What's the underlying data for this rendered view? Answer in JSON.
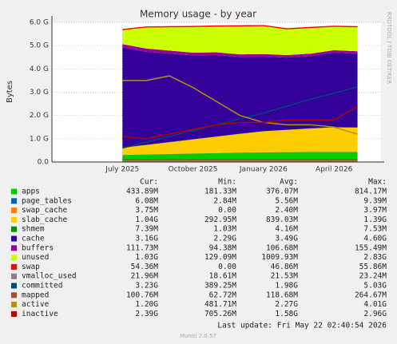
{
  "chart_data": {
    "type": "area",
    "title": "Memory usage - by year",
    "ylabel": "Bytes",
    "side_text": "RRDTOOL / TOBI OETIKER",
    "x": [
      "2025-07",
      "2025-08",
      "2025-09",
      "2025-10",
      "2025-11",
      "2025-12",
      "2026-01",
      "2026-02",
      "2026-03",
      "2026-04",
      "2026-05"
    ],
    "xlim": [
      "2025-04",
      "2026-06"
    ],
    "xticks": [
      {
        "value": "2025-07",
        "label": "July 2025"
      },
      {
        "value": "2025-10",
        "label": "October 2025"
      },
      {
        "value": "2026-01",
        "label": "January 2026"
      },
      {
        "value": "2026-04",
        "label": "April 2026"
      }
    ],
    "ylim": [
      0,
      6
    ],
    "yticks": [
      {
        "value": 0,
        "label": "0.0"
      },
      {
        "value": 1,
        "label": "1.0 G"
      },
      {
        "value": 2,
        "label": "2.0 G"
      },
      {
        "value": 3,
        "label": "3.0 G"
      },
      {
        "value": 4,
        "label": "4.0 G"
      },
      {
        "value": 5,
        "label": "5.0 G"
      },
      {
        "value": 6,
        "label": "6.0 G"
      }
    ],
    "grid": true,
    "stat_headers": [
      "Cur:",
      "Min:",
      "Avg:",
      "Max:"
    ],
    "series": [
      {
        "name": "apps",
        "color": "#00cc00",
        "stack": true,
        "values": [
          0.3,
          0.32,
          0.34,
          0.36,
          0.38,
          0.4,
          0.41,
          0.42,
          0.43,
          0.43,
          0.43
        ],
        "stats": [
          "433.89M",
          "181.33M",
          "376.07M",
          "814.17M"
        ]
      },
      {
        "name": "page_tables",
        "color": "#0066b3",
        "stack": true,
        "values": [
          0.006,
          0.006,
          0.006,
          0.006,
          0.006,
          0.006,
          0.006,
          0.006,
          0.006,
          0.006,
          0.006
        ],
        "stats": [
          "6.08M",
          "2.84M",
          "5.56M",
          "9.39M"
        ]
      },
      {
        "name": "swap_cache",
        "color": "#ff8000",
        "stack": true,
        "values": [
          0.003,
          0.003,
          0.003,
          0.003,
          0.003,
          0.003,
          0.003,
          0.003,
          0.003,
          0.003,
          0.003
        ],
        "stats": [
          "3.75M",
          "0.00",
          "2.40M",
          "3.97M"
        ]
      },
      {
        "name": "slab_cache",
        "color": "#ffcc00",
        "stack": true,
        "values": [
          0.3,
          0.4,
          0.5,
          0.6,
          0.7,
          0.8,
          0.9,
          0.95,
          1.0,
          1.05,
          1.04
        ],
        "stats": [
          "1.04G",
          "292.95M",
          "839.03M",
          "1.39G"
        ]
      },
      {
        "name": "shmem",
        "color": "#008f00",
        "stack": true,
        "values": [
          0.007,
          0.007,
          0.007,
          0.007,
          0.007,
          0.007,
          0.007,
          0.007,
          0.007,
          0.007,
          0.007
        ],
        "stats": [
          "7.39M",
          "1.03M",
          "4.16M",
          "7.53M"
        ]
      },
      {
        "name": "cache",
        "color": "#330099",
        "stack": true,
        "values": [
          4.3,
          4.0,
          3.8,
          3.6,
          3.5,
          3.3,
          3.2,
          3.1,
          3.1,
          3.2,
          3.16
        ],
        "stats": [
          "3.16G",
          "2.29G",
          "3.49G",
          "4.60G"
        ]
      },
      {
        "name": "buffers",
        "color": "#990099",
        "stack": true,
        "values": [
          0.15,
          0.14,
          0.13,
          0.12,
          0.12,
          0.11,
          0.11,
          0.11,
          0.11,
          0.11,
          0.11
        ],
        "stats": [
          "111.73M",
          "94.38M",
          "106.68M",
          "155.49M"
        ]
      },
      {
        "name": "unused",
        "color": "#ccff00",
        "stack": true,
        "values": [
          0.6,
          0.9,
          1.0,
          1.1,
          1.1,
          1.2,
          1.2,
          1.1,
          1.1,
          1.0,
          1.03
        ],
        "stats": [
          "1.03G",
          "129.09M",
          "1009.93M",
          "2.83G"
        ]
      },
      {
        "name": "swap",
        "color": "#ff0000",
        "stack": true,
        "values": [
          0.05,
          0.05,
          0.05,
          0.05,
          0.05,
          0.05,
          0.05,
          0.05,
          0.05,
          0.05,
          0.05
        ],
        "stats": [
          "54.36M",
          "0.00",
          "46.86M",
          "55.86M"
        ]
      },
      {
        "name": "vmalloc_used",
        "color": "#808080",
        "stack": false,
        "values": [
          0.02,
          0.02,
          0.02,
          0.02,
          0.02,
          0.02,
          0.02,
          0.02,
          0.02,
          0.02,
          0.02
        ],
        "stats": [
          "21.96M",
          "18.61M",
          "21.53M",
          "23.24M"
        ]
      },
      {
        "name": "committed",
        "color": "#00487d",
        "stack": false,
        "values": [
          0.6,
          0.85,
          1.1,
          1.35,
          1.6,
          1.85,
          2.1,
          2.4,
          2.7,
          2.95,
          3.23
        ],
        "stats": [
          "3.23G",
          "389.25M",
          "1.98G",
          "5.03G"
        ]
      },
      {
        "name": "mapped",
        "color": "#a0522d",
        "stack": false,
        "values": [
          0.1,
          0.1,
          0.1,
          0.1,
          0.1,
          0.1,
          0.1,
          0.1,
          0.1,
          0.1,
          0.1
        ],
        "stats": [
          "100.76M",
          "62.72M",
          "118.68M",
          "264.67M"
        ]
      },
      {
        "name": "active",
        "color": "#b3930b",
        "stack": false,
        "values": [
          3.5,
          3.5,
          3.7,
          3.2,
          2.6,
          2.0,
          1.7,
          1.6,
          1.6,
          1.5,
          1.2
        ],
        "stats": [
          "1.20G",
          "481.71M",
          "2.27G",
          "4.01G"
        ]
      },
      {
        "name": "inactive",
        "color": "#b30000",
        "stack": false,
        "values": [
          1.1,
          1.0,
          1.2,
          1.4,
          1.6,
          1.7,
          1.7,
          1.8,
          1.8,
          1.8,
          2.39
        ],
        "stats": [
          "2.39G",
          "705.26M",
          "1.58G",
          "2.96G"
        ]
      }
    ],
    "last_update": "Last update: Fri May 22 02:40:54 2026",
    "footer": "Munin 2.0.57"
  }
}
